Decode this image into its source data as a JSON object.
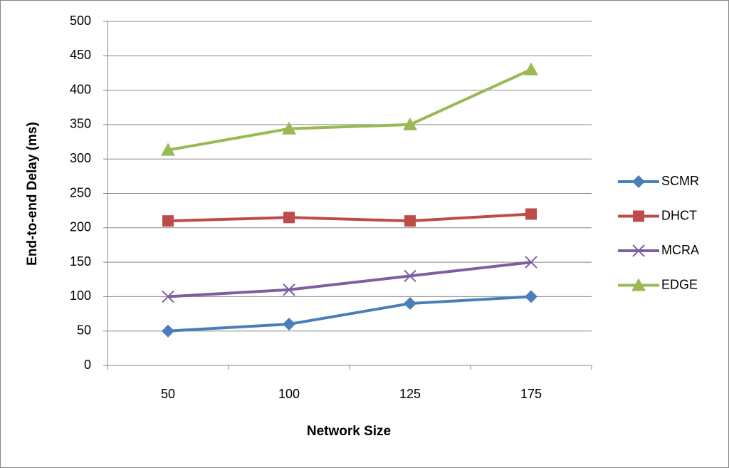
{
  "chart_data": {
    "type": "line",
    "x_label": "Network Size",
    "y_label": "End-to-end Delay (ms)",
    "categories": [
      "50",
      "100",
      "125",
      "175"
    ],
    "series": [
      {
        "name": "SCMR",
        "color": "#4a7ebb",
        "marker": "diamond",
        "values": [
          50,
          60,
          90,
          100
        ]
      },
      {
        "name": "DHCT",
        "color": "#be4b48",
        "marker": "square",
        "values": [
          210,
          215,
          210,
          220
        ]
      },
      {
        "name": "MCRA",
        "color": "#7d5fa0",
        "marker": "x",
        "values": [
          100,
          110,
          130,
          150
        ]
      },
      {
        "name": "EDGE",
        "color": "#98b954",
        "marker": "triangle",
        "values": [
          313,
          344,
          350,
          430
        ]
      }
    ],
    "ylim": [
      0,
      500
    ],
    "yticks": [
      0,
      50,
      100,
      150,
      200,
      250,
      300,
      350,
      400,
      450,
      500
    ],
    "grid": true,
    "legend": "right"
  }
}
